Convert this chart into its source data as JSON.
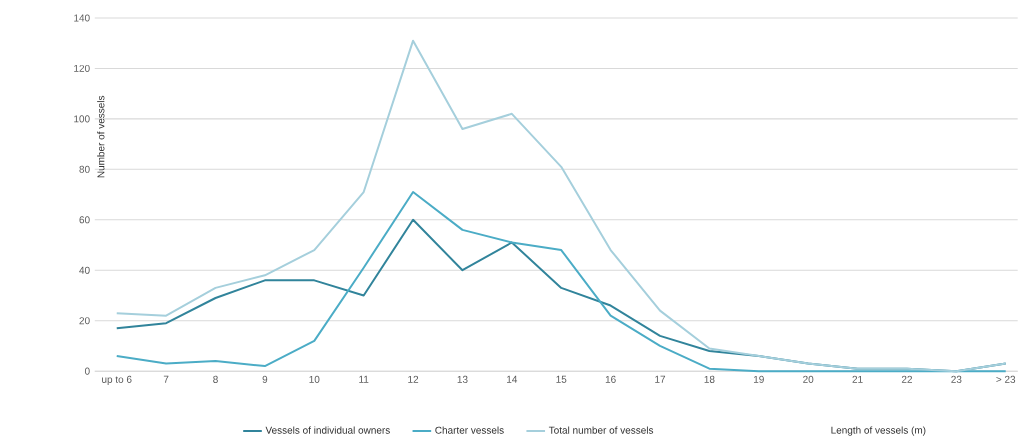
{
  "chart_data": {
    "type": "line",
    "ylabel": "Number of vessels",
    "xlabel": "Length of vessels (m)",
    "categories": [
      "up to  6",
      "7",
      "8",
      "9",
      "10",
      "11",
      "12",
      "13",
      "14",
      "15",
      "16",
      "17",
      "18",
      "19",
      "20",
      "21",
      "22",
      "23",
      "> 23"
    ],
    "series": [
      {
        "name": "Vessels of individual owners",
        "color": "#31849b",
        "values": [
          17,
          19,
          29,
          36,
          36,
          30,
          60,
          40,
          51,
          33,
          26,
          14,
          8,
          6,
          3,
          1,
          1,
          0,
          3
        ]
      },
      {
        "name": "Charter vessels",
        "color": "#4bacc6",
        "values": [
          6,
          3,
          4,
          2,
          12,
          41,
          71,
          56,
          51,
          48,
          22,
          10,
          1,
          0,
          0,
          0,
          0,
          0,
          0
        ]
      },
      {
        "name": "Total number of vessels",
        "color": "#a5cfdc",
        "values": [
          23,
          22,
          33,
          38,
          48,
          71,
          131,
          96,
          102,
          81,
          48,
          24,
          9,
          6,
          3,
          1,
          1,
          0,
          3
        ]
      }
    ],
    "ylim": [
      0,
      140
    ],
    "yticks": [
      0,
      20,
      40,
      60,
      80,
      100,
      120,
      140
    ],
    "grid": "y",
    "legend": "bottom",
    "marker": "none",
    "line_style": "solid"
  }
}
